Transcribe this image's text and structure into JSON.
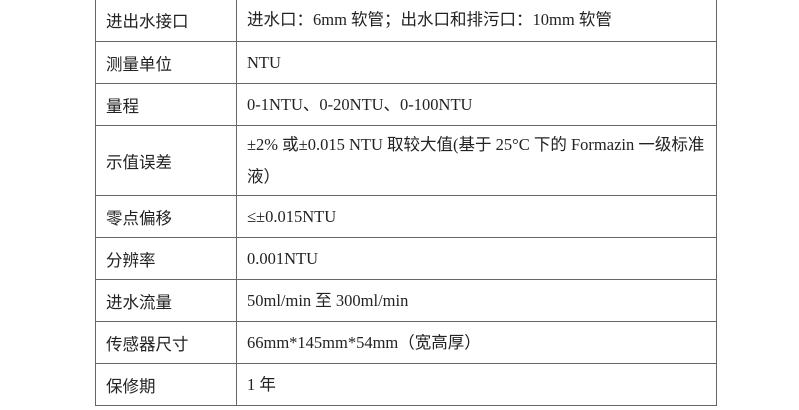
{
  "rows": [
    {
      "label": "进出水接口",
      "value": "进水口：6mm 软管；出水口和排污口：10mm 软管"
    },
    {
      "label": "测量单位",
      "value": "NTU"
    },
    {
      "label": "量程",
      "value": "0-1NTU、0-20NTU、0-100NTU"
    },
    {
      "label": "示值误差",
      "value": "±2% 或±0.015 NTU 取较大值(基于 25°C 下的 Formazin 一级标准液）"
    },
    {
      "label": "零点偏移",
      "value": "≤±0.015NTU"
    },
    {
      "label": "分辨率",
      "value": "0.001NTU"
    },
    {
      "label": "进水流量",
      "value": "50ml/min 至 300ml/min"
    },
    {
      "label": "传感器尺寸",
      "value": "66mm*145mm*54mm（宽高厚）"
    },
    {
      "label": "保修期",
      "value": "1 年"
    }
  ]
}
